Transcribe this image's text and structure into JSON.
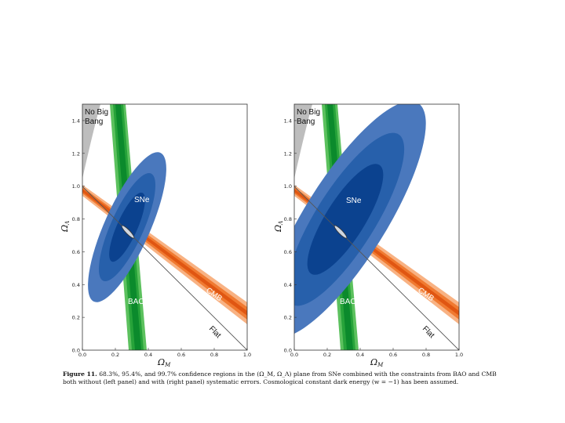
{
  "figure": {
    "caption_label": "Figure 11.",
    "caption_text": "68.3%, 95.4%, and 99.7% confidence regions in the (Ω_M, Ω_Λ) plane from SNe combined with the constraints from BAO and CMB both without (left panel) and with (right panel) systematic errors. Cosmological constant dark energy (w = −1) has been assumed."
  },
  "chart_data": [
    {
      "type": "contour",
      "panel": "left",
      "xlabel": "Ω_M",
      "ylabel": "Ω_Λ",
      "xlim": [
        0.0,
        1.0
      ],
      "ylim": [
        0.0,
        1.5
      ],
      "x_ticks": [
        "0.0",
        "0.2",
        "0.4",
        "0.6",
        "0.8",
        "1.0"
      ],
      "y_ticks": [
        "0.0",
        "0.2",
        "0.4",
        "0.6",
        "0.8",
        "1.0",
        "1.2",
        "1.4"
      ],
      "annotations": [
        "No Big Bang",
        "SNe",
        "BAO",
        "CMB",
        "Flat"
      ],
      "colors": {
        "sne": [
          "#3f74b8",
          "#1f5aa6",
          "#0c3f8c"
        ],
        "bao": [
          "#43b04a",
          "#1f9a35",
          "#0a7d28"
        ],
        "cmb": [
          "#f7a36b",
          "#f07a31",
          "#e35a12"
        ],
        "nobigbang": "#bdbdbd"
      },
      "regions": {
        "sne": {
          "center": [
            0.27,
            0.73
          ],
          "rx": [
            0.42,
            0.3,
            0.2
          ],
          "ry": [
            0.09,
            0.065,
            0.045
          ],
          "angle_deg": 66
        },
        "combined": {
          "center": [
            0.28,
            0.73
          ],
          "rx": 0.055,
          "ry": 0.012
        }
      },
      "flat_line": [
        [
          0.0,
          1.0
        ],
        [
          1.0,
          0.0
        ]
      ]
    },
    {
      "type": "contour",
      "panel": "right",
      "xlabel": "Ω_M",
      "ylabel": "Ω_Λ",
      "xlim": [
        0.0,
        1.0
      ],
      "ylim": [
        0.0,
        1.5
      ],
      "x_ticks": [
        "0.0",
        "0.2",
        "0.4",
        "0.6",
        "0.8",
        "1.0"
      ],
      "y_ticks": [
        "0.0",
        "0.2",
        "0.4",
        "0.6",
        "0.8",
        "1.0",
        "1.2",
        "1.4"
      ],
      "annotations": [
        "No Big Bang",
        "SNe",
        "BAO",
        "CMB",
        "Flat"
      ],
      "colors": {
        "sne": [
          "#3f74b8",
          "#1f5aa6",
          "#0c3f8c"
        ],
        "bao": [
          "#43b04a",
          "#1f9a35",
          "#0a7d28"
        ],
        "cmb": [
          "#f7a36b",
          "#f07a31",
          "#e35a12"
        ],
        "nobigbang": "#bdbdbd"
      },
      "regions": {
        "sne": {
          "center": [
            0.3,
            0.8
          ],
          "rx": [
            0.75,
            0.55,
            0.37
          ],
          "ry": [
            0.2,
            0.15,
            0.1
          ],
          "angle_deg": 58
        },
        "combined": {
          "center": [
            0.28,
            0.73
          ],
          "rx": 0.055,
          "ry": 0.012
        }
      },
      "flat_line": [
        [
          0.0,
          1.0
        ],
        [
          1.0,
          0.0
        ]
      ]
    }
  ]
}
